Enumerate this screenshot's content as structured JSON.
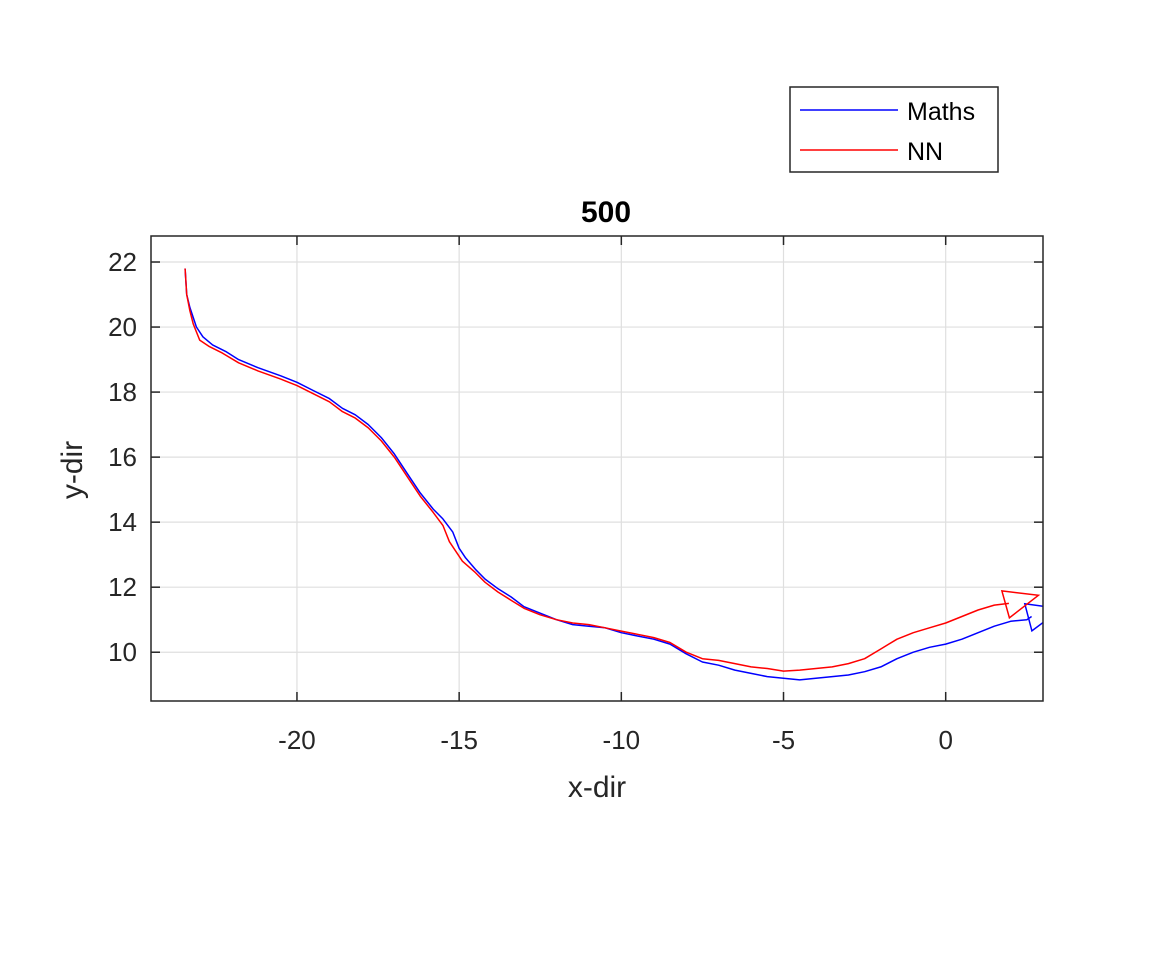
{
  "chart_data": {
    "type": "line",
    "title": "500",
    "xlabel": "x-dir",
    "ylabel": "y-dir",
    "xlim": [
      -24.5,
      3
    ],
    "ylim": [
      8.5,
      22.8
    ],
    "xticks": [
      -20,
      -15,
      -10,
      -5,
      0
    ],
    "xtick_labels": [
      "-20",
      "-15",
      "-10",
      "-5",
      "0"
    ],
    "yticks": [
      10,
      12,
      14,
      16,
      18,
      20,
      22
    ],
    "ytick_labels": [
      "10",
      "12",
      "14",
      "16",
      "18",
      "20",
      "22"
    ],
    "grid": true,
    "legend_position": "top-right (outside, above axes)",
    "series": [
      {
        "name": "Maths",
        "color": "#0000ff",
        "x": [
          -23.45,
          -23.4,
          -23.3,
          -23.1,
          -22.9,
          -22.6,
          -22.2,
          -21.8,
          -21.2,
          -20.5,
          -20.0,
          -19.5,
          -19.0,
          -18.6,
          -18.2,
          -17.8,
          -17.4,
          -17.0,
          -16.6,
          -16.2,
          -15.8,
          -15.5,
          -15.2,
          -15.0,
          -14.8,
          -14.5,
          -14.2,
          -13.8,
          -13.4,
          -13.0,
          -12.5,
          -12.0,
          -11.5,
          -11.0,
          -10.5,
          -10.0,
          -9.5,
          -9.0,
          -8.5,
          -8.0,
          -7.5,
          -7.0,
          -6.5,
          -6.0,
          -5.5,
          -5.0,
          -4.5,
          -4.0,
          -3.5,
          -3.0,
          -2.5,
          -2.0,
          -1.5,
          -1.0,
          -0.5,
          0.0,
          0.5,
          1.0,
          1.5,
          2.0,
          2.5,
          2.65
        ],
        "y": [
          21.8,
          21.0,
          20.6,
          20.0,
          19.7,
          19.45,
          19.25,
          19.0,
          18.75,
          18.5,
          18.3,
          18.05,
          17.8,
          17.5,
          17.3,
          17.0,
          16.6,
          16.1,
          15.5,
          14.9,
          14.4,
          14.1,
          13.7,
          13.2,
          12.9,
          12.55,
          12.25,
          11.95,
          11.7,
          11.4,
          11.2,
          11.0,
          10.85,
          10.8,
          10.75,
          10.6,
          10.5,
          10.4,
          10.25,
          9.95,
          9.7,
          9.6,
          9.45,
          9.35,
          9.25,
          9.2,
          9.15,
          9.2,
          9.25,
          9.3,
          9.4,
          9.55,
          9.8,
          10.0,
          10.15,
          10.25,
          10.4,
          10.6,
          10.8,
          10.95,
          11.0,
          11.1
        ]
      },
      {
        "name": "NN",
        "color": "#ff0000",
        "x": [
          -23.45,
          -23.4,
          -23.3,
          -23.2,
          -23.0,
          -22.7,
          -22.3,
          -21.8,
          -21.2,
          -20.5,
          -20.0,
          -19.5,
          -19.0,
          -18.6,
          -18.2,
          -17.8,
          -17.4,
          -17.0,
          -16.6,
          -16.2,
          -15.8,
          -15.5,
          -15.3,
          -15.1,
          -14.9,
          -14.5,
          -14.2,
          -13.8,
          -13.4,
          -13.0,
          -12.5,
          -12.0,
          -11.5,
          -11.0,
          -10.5,
          -10.0,
          -9.5,
          -9.0,
          -8.5,
          -8.0,
          -7.5,
          -7.0,
          -6.5,
          -6.0,
          -5.5,
          -5.0,
          -4.5,
          -4.0,
          -3.5,
          -3.0,
          -2.5,
          -2.0,
          -1.5,
          -1.0,
          -0.5,
          0.0,
          0.5,
          1.0,
          1.5,
          1.95
        ],
        "y": [
          21.8,
          21.0,
          20.5,
          20.1,
          19.6,
          19.4,
          19.2,
          18.9,
          18.65,
          18.4,
          18.2,
          17.95,
          17.7,
          17.4,
          17.2,
          16.9,
          16.5,
          16.0,
          15.4,
          14.8,
          14.3,
          13.9,
          13.4,
          13.1,
          12.8,
          12.45,
          12.15,
          11.85,
          11.6,
          11.35,
          11.15,
          11.0,
          10.9,
          10.85,
          10.75,
          10.65,
          10.55,
          10.45,
          10.3,
          10.0,
          9.8,
          9.75,
          9.65,
          9.55,
          9.5,
          9.42,
          9.45,
          9.5,
          9.55,
          9.65,
          9.8,
          10.1,
          10.4,
          10.6,
          10.75,
          10.9,
          11.1,
          11.3,
          11.45,
          11.5
        ]
      }
    ]
  }
}
